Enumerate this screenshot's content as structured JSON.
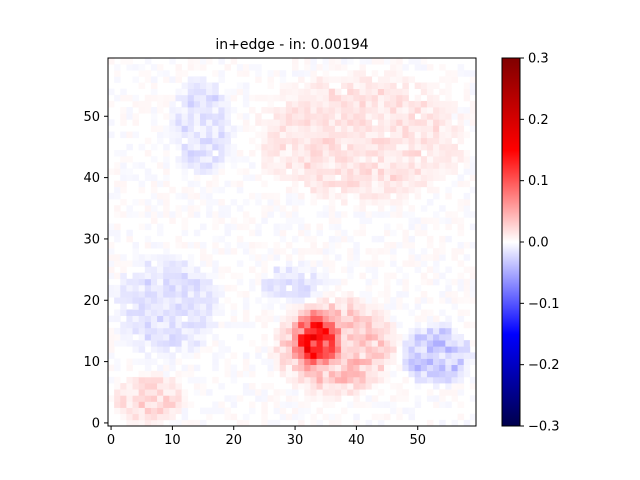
{
  "chart_data": {
    "type": "heatmap",
    "title": "in+edge - in: 0.00194",
    "xlabel": "",
    "ylabel": "",
    "grid_size": [
      60,
      60
    ],
    "xlim": [
      -0.5,
      59.5
    ],
    "ylim": [
      -0.5,
      59.5
    ],
    "x_ticks": [
      0,
      10,
      20,
      30,
      40,
      50
    ],
    "y_ticks": [
      0,
      10,
      20,
      30,
      40,
      50
    ],
    "colorbar": {
      "colormap": "seismic",
      "vmin": -0.3,
      "vmax": 0.3,
      "ticks": [
        0.3,
        0.2,
        0.1,
        0.0,
        -0.1,
        -0.2,
        -0.3
      ],
      "tick_labels": [
        "0.3",
        "0.2",
        "0.1",
        "0.0",
        "−0.1",
        "−0.2",
        "−0.3"
      ]
    },
    "regions": [
      {
        "description": "strong positive hotspot",
        "x_range": [
          29,
          38
        ],
        "y_range": [
          8,
          19
        ],
        "peak_value": 0.16,
        "mean_value": 0.07
      },
      {
        "description": "moderate positive halo",
        "x_range": [
          26,
          47
        ],
        "y_range": [
          4,
          21
        ],
        "mean_value": 0.03
      },
      {
        "description": "weak positive upper-right",
        "x_range": [
          22,
          59
        ],
        "y_range": [
          35,
          58
        ],
        "mean_value": 0.015
      },
      {
        "description": "weak positive lower-left",
        "x_range": [
          0,
          12
        ],
        "y_range": [
          0,
          8
        ],
        "mean_value": 0.02
      },
      {
        "description": "weak negative left band",
        "x_range": [
          0,
          18
        ],
        "y_range": [
          10,
          28
        ],
        "mean_value": -0.015
      },
      {
        "description": "weak negative lower-right",
        "x_range": [
          47,
          59
        ],
        "y_range": [
          6,
          16
        ],
        "mean_value": -0.03
      },
      {
        "description": "weak negative center band",
        "x_range": [
          24,
          36
        ],
        "y_range": [
          20,
          26
        ],
        "mean_value": -0.015
      },
      {
        "description": "weak negative upper-left",
        "x_range": [
          10,
          20
        ],
        "y_range": [
          40,
          57
        ],
        "mean_value": -0.015
      }
    ]
  }
}
